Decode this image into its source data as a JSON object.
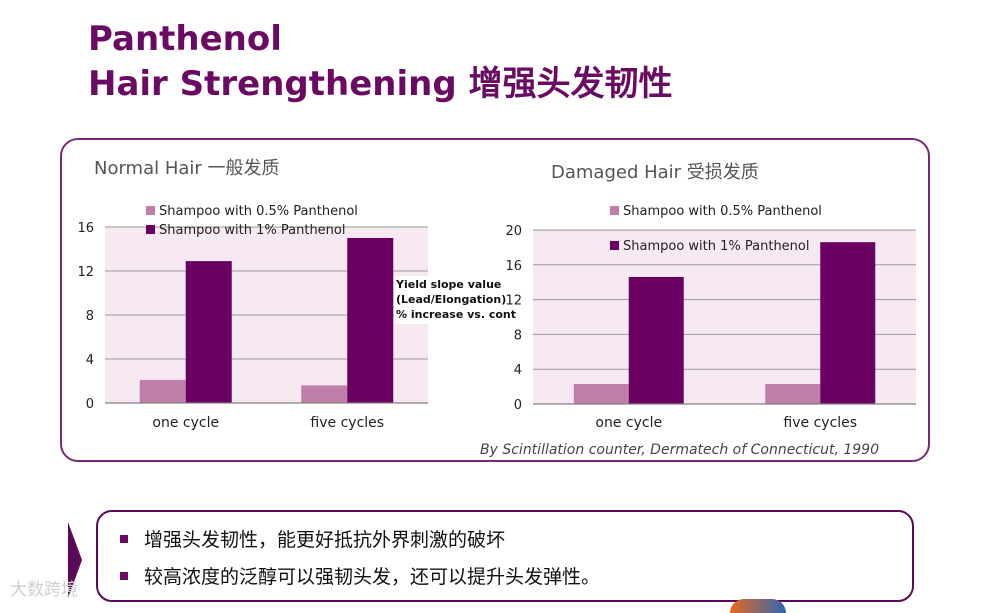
{
  "title": {
    "line1": "Panthenol",
    "line2": "Hair Strengthening 增强头发韧性"
  },
  "charts": {
    "normal_title": "Normal Hair 一般发质",
    "damaged_title": "Damaged Hair 受损发质",
    "ylabel_lines": [
      "Yield slope value",
      "(Lead/Elongation)",
      "% increase vs. cont"
    ],
    "source": "By Scintillation counter, Dermatech of Connecticut, 1990"
  },
  "chart_data": [
    {
      "type": "bar",
      "title": "Normal Hair 一般发质",
      "categories": [
        "one cycle",
        "five cycles"
      ],
      "series": [
        {
          "name": "Shampoo with 0.5% Panthenol",
          "values": [
            2.1,
            1.6
          ]
        },
        {
          "name": "Shampoo with 1% Panthenol",
          "values": [
            12.9,
            15.0
          ]
        }
      ],
      "ylim": [
        0,
        16
      ],
      "yticks": [
        0,
        4,
        8,
        12,
        16
      ],
      "ylabel": "Yield slope value (Lead/Elongation) % increase vs. cont",
      "grid": true,
      "legend": "top",
      "colors": [
        "#c07fa9",
        "#6a0062"
      ]
    },
    {
      "type": "bar",
      "title": "Damaged Hair 受损发质",
      "categories": [
        "one cycle",
        "five cycles"
      ],
      "series": [
        {
          "name": "Shampoo with 0.5% Panthenol",
          "values": [
            2.3,
            2.3
          ]
        },
        {
          "name": "Shampoo with 1% Panthenol",
          "values": [
            14.6,
            18.6
          ]
        }
      ],
      "ylim": [
        0,
        20
      ],
      "yticks": [
        0,
        4,
        8,
        12,
        16,
        20
      ],
      "grid": true,
      "legend": "top",
      "colors": [
        "#c07fa9",
        "#6a0062"
      ]
    }
  ],
  "bullets": [
    "增强头发韧性，能更好抵抗外界刺激的破坏",
    "较高浓度的泛醇可以强韧头发，还可以提升头发弹性。"
  ],
  "watermark": "大数跨境",
  "colors": {
    "brand": "#6a0a62",
    "plot_bg": "#f7e9f2",
    "bar_light": "#c07fa9",
    "bar_dark": "#6a0062"
  }
}
